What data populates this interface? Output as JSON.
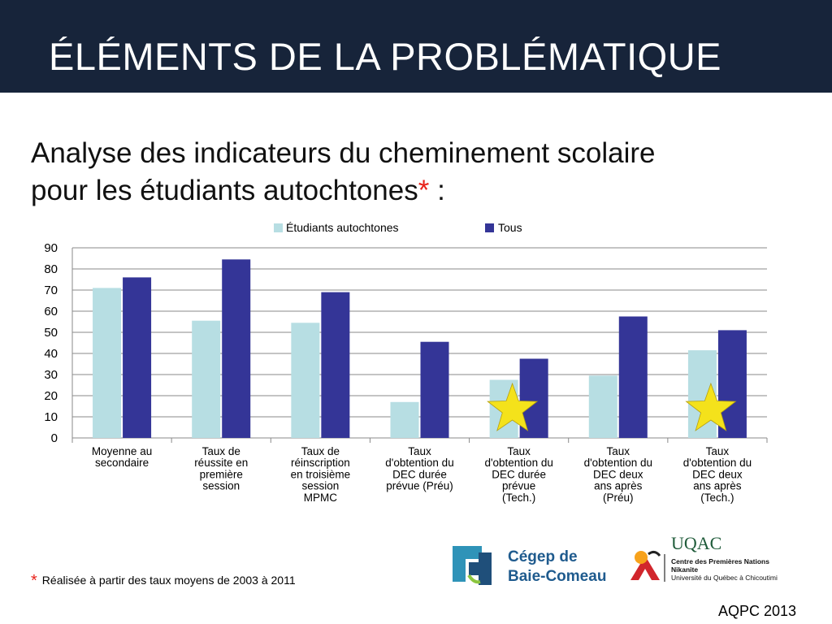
{
  "header": {
    "title": "ÉLÉMENTS DE LA PROBLÉMATIQUE"
  },
  "subtitle": {
    "line1": "Analyse des indicateurs du cheminement scolaire",
    "line2": "pour les étudiants autochtones",
    "asterisk": "*",
    "suffix": " :"
  },
  "footnote": {
    "mark": "*",
    "text": "Réalisée à partir des taux moyens de 2003 à 2011"
  },
  "source": "AQPC 2013",
  "logos": {
    "cegep_line1": "Cégep de",
    "cegep_line2": "Baie-Comeau",
    "uqac_name": "UQAC",
    "uqac_line1": "Centre des Premières Nations",
    "uqac_line2": "Nikanite",
    "uqac_line3": "Université du Québec à Chicoutimi"
  },
  "colors": {
    "header_bg": "#17243a",
    "series_autochtones": "#b7dee3",
    "series_tous": "#343597",
    "star": "#f4e21b",
    "asterisk": "#e8231b"
  },
  "chart_data": {
    "type": "bar",
    "categories": [
      [
        "Moyenne au",
        "secondaire"
      ],
      [
        "Taux de",
        "réussite en",
        "première",
        "session"
      ],
      [
        "Taux de",
        "réinscription",
        "en troisième",
        "session",
        "MPMC"
      ],
      [
        "Taux",
        "d'obtention du",
        "DEC durée",
        "prévue (Préu)"
      ],
      [
        "Taux",
        "d'obtention du",
        "DEC durée",
        "prévue",
        "(Tech.)"
      ],
      [
        "Taux",
        "d'obtention du",
        "DEC deux",
        "ans après",
        "(Préu)"
      ],
      [
        "Taux",
        "d'obtention du",
        "DEC deux",
        "ans après",
        "(Tech.)"
      ]
    ],
    "series": [
      {
        "name": "Étudiants autochtones",
        "values": [
          71,
          55.5,
          54.5,
          17,
          27.5,
          29.5,
          41.5
        ]
      },
      {
        "name": "Tous",
        "values": [
          76,
          84.5,
          69,
          45.5,
          37.5,
          57.5,
          51
        ]
      }
    ],
    "ylim": [
      0,
      90
    ],
    "yticks": [
      0,
      10,
      20,
      30,
      40,
      50,
      60,
      70,
      80,
      90
    ],
    "grid": true,
    "legend": "top-center",
    "highlighted_categories": [
      4,
      6
    ]
  }
}
